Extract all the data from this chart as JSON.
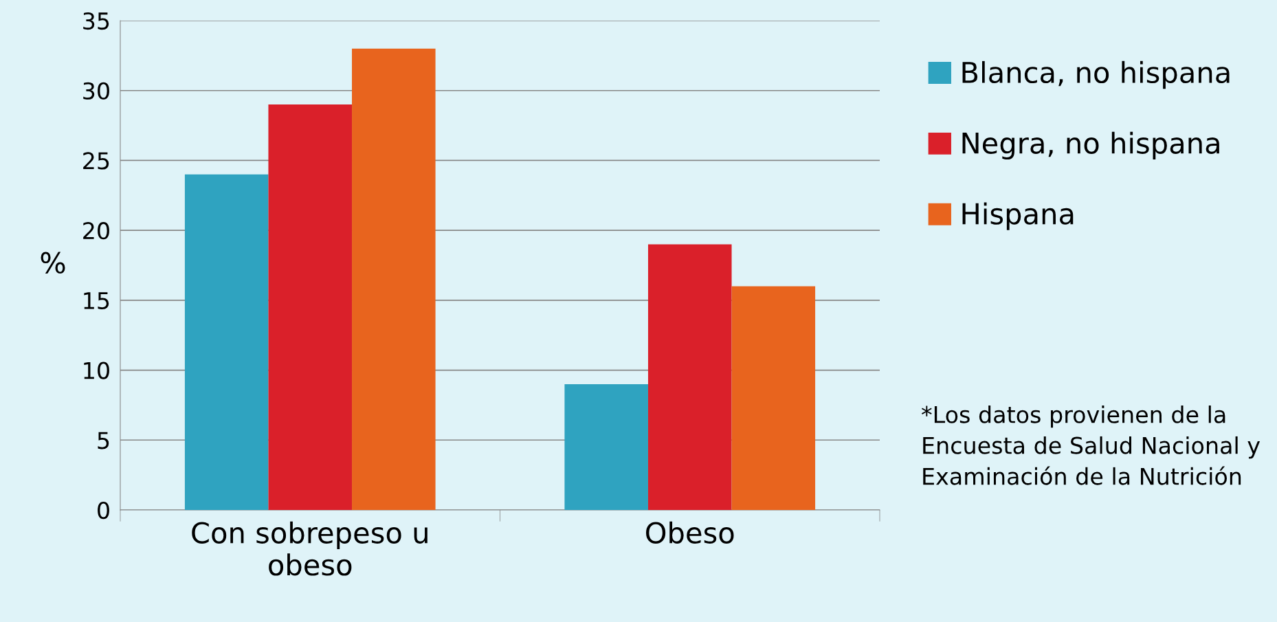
{
  "chart_data": {
    "type": "bar",
    "ylabel": "%",
    "categories": [
      "Con sobrepeso u obeso",
      "Obeso"
    ],
    "series": [
      {
        "name": "Blanca, no hispana",
        "color": "#2fa3c0",
        "values": [
          24,
          9
        ]
      },
      {
        "name": "Negra, no hispana",
        "color": "#da202a",
        "values": [
          29,
          19
        ]
      },
      {
        "name": "Hispana",
        "color": "#e8641e",
        "values": [
          33,
          16
        ]
      }
    ],
    "ylim": [
      0,
      35
    ],
    "yticks": [
      0,
      5,
      10,
      15,
      20,
      25,
      30,
      35
    ],
    "grid": "y",
    "legend": "right",
    "annotations": [
      "*Los datos provienen de la Encuesta de Salud Nacional y Examinación de la Nutrición"
    ]
  }
}
